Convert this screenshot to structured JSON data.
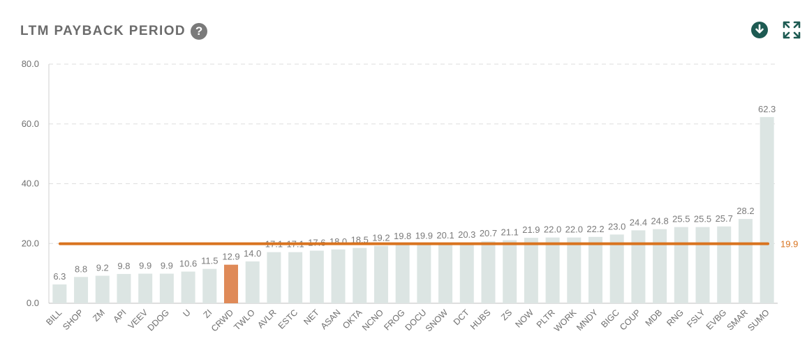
{
  "header": {
    "title": "LTM PAYBACK PERIOD",
    "help_glyph": "?",
    "help_icon": "question-circle-icon",
    "download_icon": "download-circle-icon",
    "expand_icon": "expand-arrows-icon"
  },
  "colors": {
    "bar": "#dce5e3",
    "highlight_bar": "#df8a58",
    "reference_line": "#d9731f",
    "icon_accent": "#1d5a52",
    "help_icon_bg": "#7a7a7a"
  },
  "chart_data": {
    "type": "bar",
    "title": "LTM PAYBACK PERIOD",
    "xlabel": "",
    "ylabel": "",
    "ylim": [
      0,
      80
    ],
    "yticks": [
      "0.0",
      "20.0",
      "40.0",
      "60.0",
      "80.0"
    ],
    "grid": true,
    "categories": [
      "BILL",
      "SHOP",
      "ZM",
      "API",
      "VEEV",
      "DDOG",
      "U",
      "ZI",
      "CRWD",
      "TWLO",
      "AVLR",
      "ESTC",
      "NET",
      "ASAN",
      "OKTA",
      "NCNO",
      "FROG",
      "DOCU",
      "SNOW",
      "DCT",
      "HUBS",
      "ZS",
      "NOW",
      "PLTR",
      "WORK",
      "MNDY",
      "BIGC",
      "COUP",
      "MDB",
      "RNG",
      "FSLY",
      "EVBG",
      "SMAR",
      "SUMO"
    ],
    "values": [
      6.3,
      8.8,
      9.2,
      9.8,
      9.9,
      9.9,
      10.6,
      11.5,
      12.9,
      14.0,
      17.1,
      17.1,
      17.6,
      18.0,
      18.5,
      19.2,
      19.8,
      19.9,
      20.1,
      20.3,
      20.7,
      21.1,
      21.9,
      22.0,
      22.0,
      22.2,
      23.0,
      24.4,
      24.8,
      25.5,
      25.5,
      25.7,
      28.2,
      62.3
    ],
    "data_labels": [
      "6.3",
      "8.8",
      "9.2",
      "9.8",
      "9.9",
      "9.9",
      "10.6",
      "11.5",
      "12.9",
      "14.0",
      "17.1",
      "17.1",
      "17.6",
      "18.0",
      "18.5",
      "19.2",
      "19.8",
      "19.9",
      "20.1",
      "20.3",
      "20.7",
      "21.1",
      "21.9",
      "22.0",
      "22.0",
      "22.2",
      "23.0",
      "24.4",
      "24.8",
      "25.5",
      "25.5",
      "25.7",
      "28.2",
      "62.3"
    ],
    "highlight": "CRWD",
    "reference_line": {
      "value": 19.9,
      "label": "19.9"
    }
  }
}
